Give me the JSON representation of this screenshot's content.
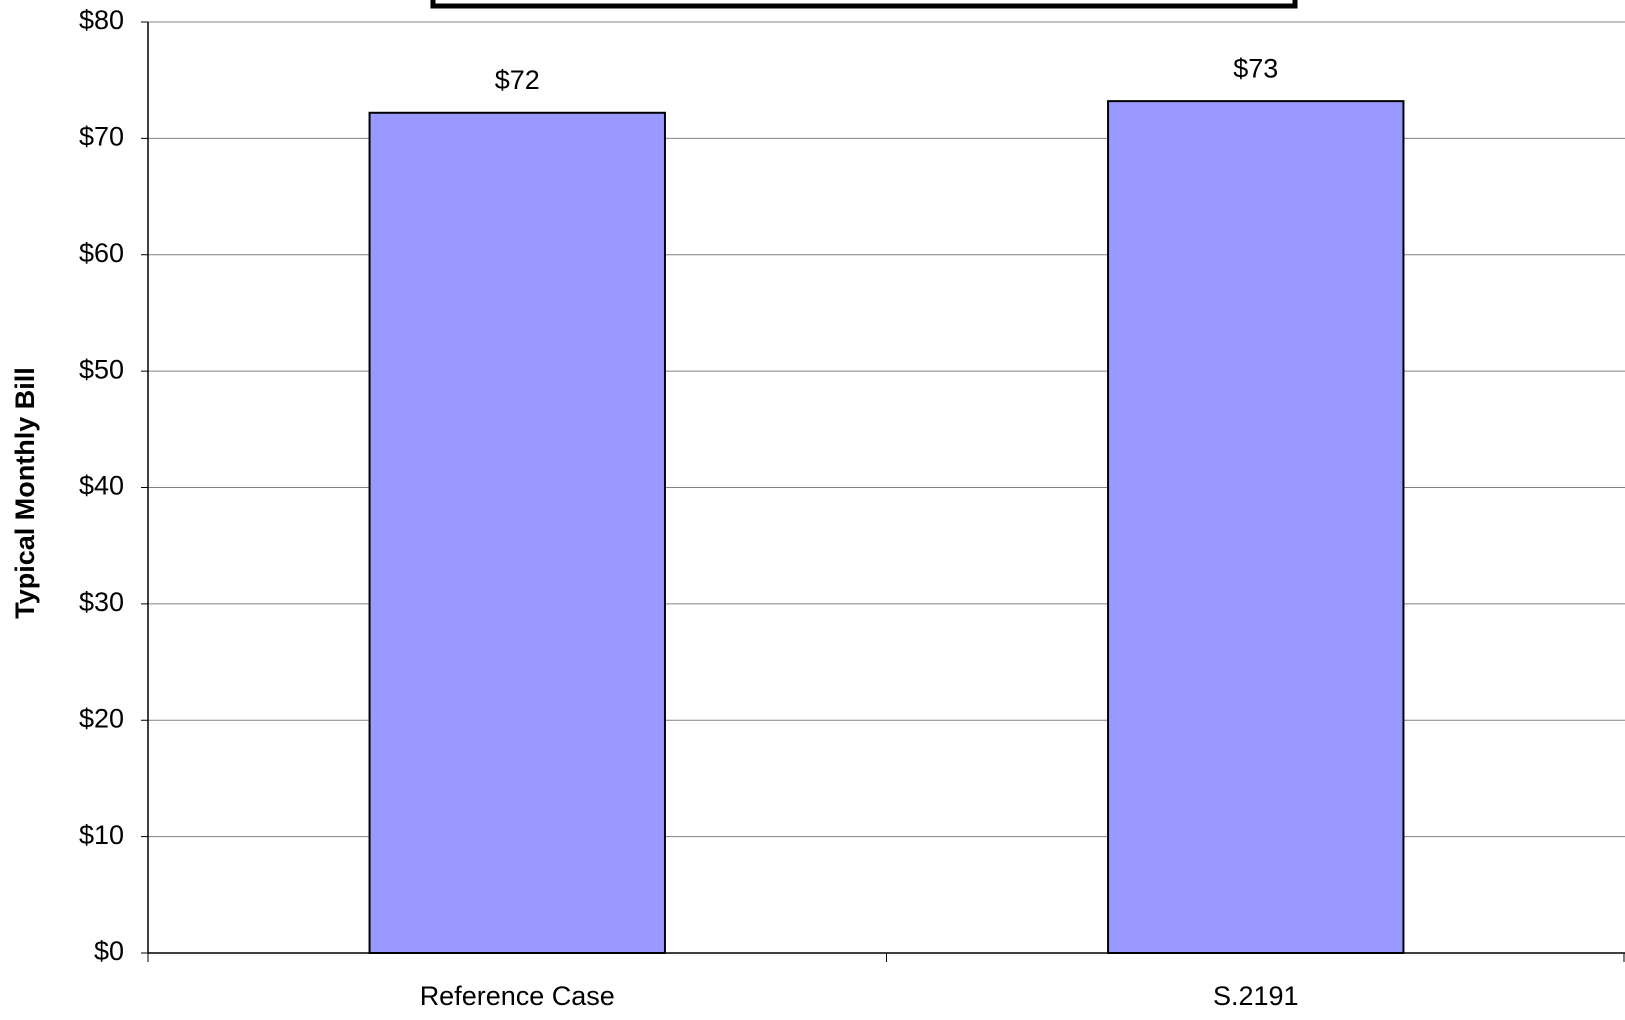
{
  "chart_data": {
    "type": "bar",
    "y_label": "Typical Monthly Bill",
    "categories": [
      "Reference Case",
      "S.2191"
    ],
    "values": [
      72.2,
      73.2
    ],
    "value_labels": [
      "$72",
      "$73"
    ],
    "color": "#9999ff",
    "ylim": [
      0,
      80
    ],
    "yticks": [
      {
        "value": 0,
        "label": "$0"
      },
      {
        "value": 10,
        "label": "$10"
      },
      {
        "value": 20,
        "label": "$20"
      },
      {
        "value": 30,
        "label": "$30"
      },
      {
        "value": 40,
        "label": "$40"
      },
      {
        "value": 50,
        "label": "$50"
      },
      {
        "value": 60,
        "label": "$60"
      },
      {
        "value": 70,
        "label": "$70"
      },
      {
        "value": 80,
        "label": "$80"
      }
    ],
    "grid": true
  }
}
